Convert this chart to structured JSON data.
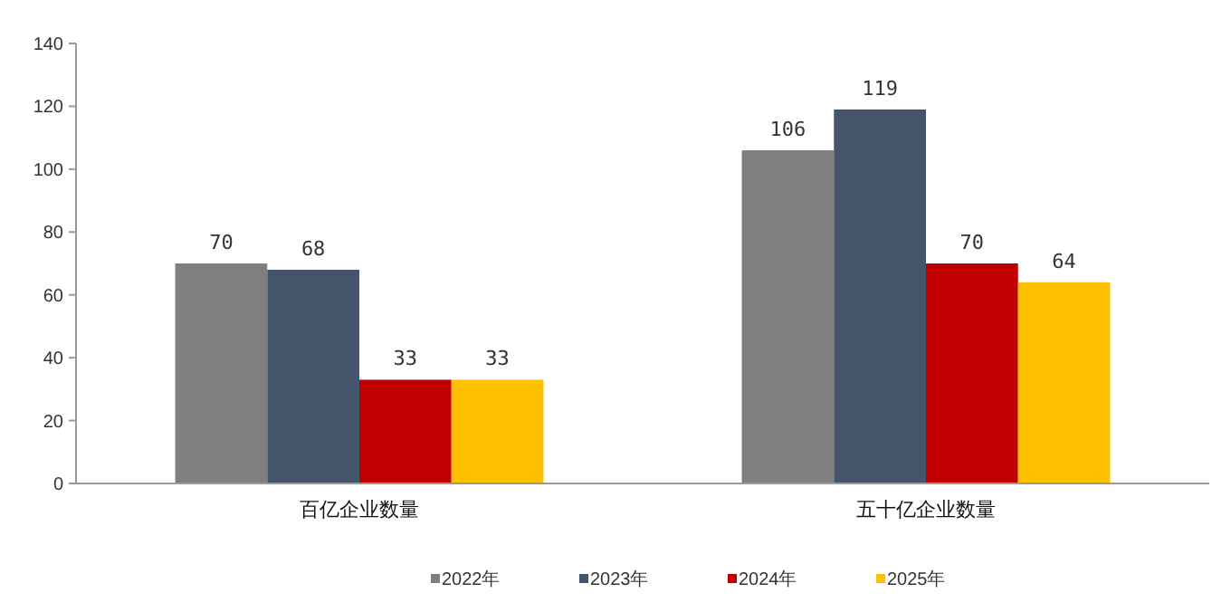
{
  "chart_data": {
    "type": "bar",
    "categories": [
      "百亿企业数量",
      "五十亿企业数量"
    ],
    "series": [
      {
        "name": "2022年",
        "color": "#7f7f7f",
        "values": [
          70,
          106
        ]
      },
      {
        "name": "2023年",
        "color": "#44546a",
        "values": [
          68,
          119
        ]
      },
      {
        "name": "2024年",
        "color": "#c00000",
        "values": [
          33,
          70
        ]
      },
      {
        "name": "2025年",
        "color": "#ffc000",
        "values": [
          33,
          64
        ]
      }
    ],
    "ylim": [
      0,
      140
    ],
    "yticks": [
      0,
      20,
      40,
      60,
      80,
      100,
      120,
      140
    ],
    "grid": false,
    "legend": "bottom",
    "data_labels": true
  }
}
